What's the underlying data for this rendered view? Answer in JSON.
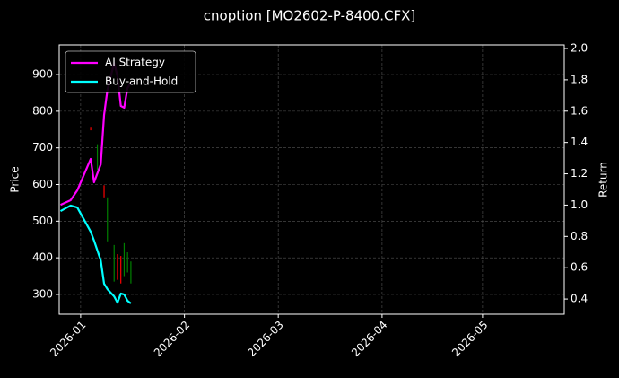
{
  "chart_data": {
    "type": "line",
    "title": "cnoption [MO2602-P-8400.CFX]",
    "ylabel": "Price",
    "y2label": "Return",
    "x": [
      -6,
      -3,
      -1,
      3,
      4,
      6,
      7,
      8,
      10,
      11,
      12,
      13,
      14,
      15
    ],
    "xlim": [
      -6.4,
      144.4
    ],
    "xticks": [
      {
        "value": 0,
        "label": "2026-01"
      },
      {
        "value": 31,
        "label": "2026-02"
      },
      {
        "value": 59,
        "label": "2026-03"
      },
      {
        "value": 90,
        "label": "2026-04"
      },
      {
        "value": 120,
        "label": "2026-05"
      }
    ],
    "ylim": [
      246,
      981
    ],
    "yticks": [
      300,
      400,
      500,
      600,
      700,
      800,
      900
    ],
    "y2lim": [
      0.303,
      2.023
    ],
    "y2ticks": [
      0.4,
      0.6,
      0.8,
      {
        "value": 1,
        "label": "1.0"
      },
      1.2,
      1.4,
      1.6,
      1.8,
      {
        "value": 2,
        "label": "2.0"
      }
    ],
    "grid": true,
    "legend": "upper left",
    "series": [
      {
        "name": "AI Strategy",
        "color": "#ff00ff",
        "axis": "y2",
        "values": [
          1.002,
          1.031,
          1.094,
          1.295,
          1.146,
          1.26,
          1.576,
          1.736,
          1.908,
          1.822,
          1.633,
          1.622,
          1.748,
          1.782
        ]
      },
      {
        "name": "Buy-and-Hold",
        "color": "#00ffff",
        "axis": "y2",
        "values": [
          0.962,
          0.997,
          0.985,
          0.83,
          0.773,
          0.647,
          0.498,
          0.463,
          0.417,
          0.377,
          0.435,
          0.429,
          0.389,
          0.372
        ]
      }
    ],
    "candles": {
      "x": [
        3,
        5,
        7,
        8,
        10,
        11,
        12,
        13,
        14,
        15
      ],
      "open": [
        755,
        640,
        598,
        445,
        335,
        410,
        405,
        350,
        360,
        330
      ],
      "close": [
        748,
        710,
        565,
        565,
        435,
        340,
        330,
        440,
        415,
        390
      ],
      "up_color": "#008000",
      "down_color": "#ff0000"
    }
  }
}
